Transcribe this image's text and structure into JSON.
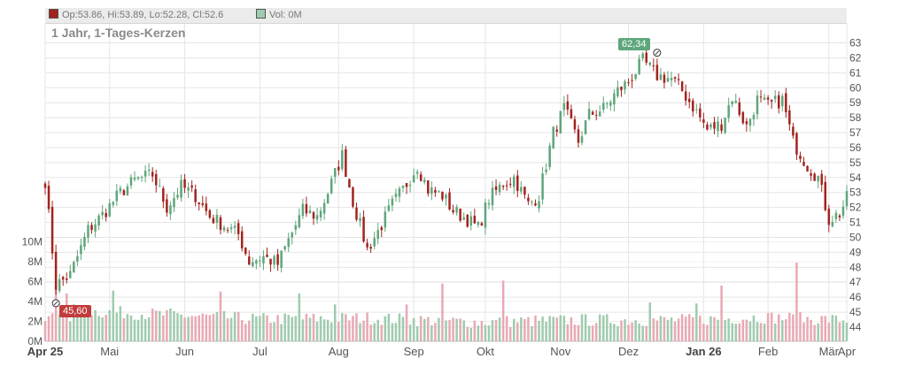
{
  "header": {
    "ohlc": "Op:53.86, Hi:53.89, Lo:52.28, Cl:52.6",
    "vol": "Vol: 0M",
    "subtitle": "1 Jahr, 1-Tages-Kerzen"
  },
  "colors": {
    "up": "#5ea67b",
    "down": "#a3231f",
    "vol_up": "#9fcbae",
    "vol_down": "#e8a9b4",
    "grid": "#e5e5e5",
    "axis_text": "#555555",
    "up_badge": "#5ea67b",
    "down_badge": "#c23b3b"
  },
  "annotations": {
    "high_label": "62,34",
    "low_label": "45,60"
  },
  "chart_data": {
    "type": "candlestick",
    "title": "1 Jahr, 1-Tages-Kerzen",
    "price_ticks": [
      44,
      45,
      46,
      47,
      48,
      49,
      50,
      51,
      52,
      53,
      54,
      55,
      56,
      57,
      58,
      59,
      60,
      61,
      62,
      63
    ],
    "volume_ticks": [
      "0M",
      "2M",
      "4M",
      "6M",
      "8M",
      "10M"
    ],
    "volume_values": [
      0,
      2,
      4,
      6,
      8,
      10
    ],
    "months": [
      "Apr 25",
      "Mai",
      "Jun",
      "Jul",
      "Aug",
      "Sep",
      "Okt",
      "Nov",
      "Dez",
      "Jan 26",
      "Feb",
      "Mär",
      "Apr"
    ],
    "high": {
      "date_index": 171,
      "value": 62.34
    },
    "low": {
      "date_index": 3,
      "value": 45.6
    },
    "close_path": [
      [
        0,
        53.8
      ],
      [
        3,
        46.8
      ],
      [
        7,
        47.5
      ],
      [
        12,
        50.5
      ],
      [
        16,
        51.5
      ],
      [
        21,
        53.0
      ],
      [
        25,
        53.8
      ],
      [
        30,
        54.2
      ],
      [
        34,
        52.0
      ],
      [
        38,
        53.4
      ],
      [
        42,
        52.8
      ],
      [
        46,
        51.4
      ],
      [
        50,
        50.8
      ],
      [
        54,
        50.2
      ],
      [
        57,
        48.4
      ],
      [
        61,
        48.7
      ],
      [
        65,
        48.2
      ],
      [
        68,
        49.8
      ],
      [
        72,
        51.8
      ],
      [
        76,
        51.4
      ],
      [
        79,
        53.0
      ],
      [
        83,
        55.5
      ],
      [
        86,
        52.4
      ],
      [
        90,
        49.2
      ],
      [
        93,
        50.4
      ],
      [
        97,
        52.2
      ],
      [
        100,
        53.2
      ],
      [
        104,
        54.8
      ],
      [
        107,
        53.2
      ],
      [
        111,
        52.8
      ],
      [
        114,
        51.8
      ],
      [
        118,
        51.2
      ],
      [
        121,
        50.6
      ],
      [
        124,
        52.6
      ],
      [
        128,
        53.6
      ],
      [
        131,
        54.0
      ],
      [
        135,
        52.2
      ],
      [
        138,
        52.8
      ],
      [
        142,
        57.0
      ],
      [
        145,
        58.6
      ],
      [
        149,
        56.4
      ],
      [
        152,
        58.2
      ],
      [
        156,
        58.6
      ],
      [
        160,
        59.8
      ],
      [
        163,
        60.4
      ],
      [
        167,
        61.8
      ],
      [
        171,
        60.8
      ],
      [
        175,
        60.6
      ],
      [
        178,
        59.8
      ],
      [
        182,
        58.4
      ],
      [
        185,
        57.2
      ],
      [
        189,
        57.6
      ],
      [
        192,
        59.4
      ],
      [
        196,
        57.4
      ],
      [
        199,
        59.2
      ],
      [
        202,
        58.8
      ],
      [
        206,
        59.2
      ],
      [
        209,
        56.4
      ],
      [
        213,
        54.8
      ],
      [
        216,
        54.0
      ],
      [
        219,
        51.2
      ],
      [
        222,
        51.6
      ],
      [
        224,
        52.6
      ]
    ],
    "volume_path": [
      [
        0,
        2.0
      ],
      [
        6,
        3.0
      ],
      [
        30,
        2.6
      ],
      [
        60,
        2.1
      ],
      [
        90,
        2.2
      ],
      [
        120,
        1.8
      ],
      [
        150,
        2.0
      ],
      [
        180,
        2.0
      ],
      [
        200,
        2.3
      ],
      [
        224,
        2.0
      ]
    ],
    "volume_spikes": [
      [
        3,
        5.4
      ],
      [
        6,
        4.8
      ],
      [
        7,
        2.0
      ],
      [
        19,
        5.1
      ],
      [
        35,
        3.3
      ],
      [
        49,
        5.0
      ],
      [
        71,
        4.8
      ],
      [
        81,
        3.7
      ],
      [
        101,
        3.7
      ],
      [
        111,
        5.8
      ],
      [
        128,
        6.1
      ],
      [
        169,
        3.9
      ],
      [
        182,
        3.8
      ],
      [
        189,
        5.6
      ],
      [
        210,
        7.9
      ]
    ]
  }
}
